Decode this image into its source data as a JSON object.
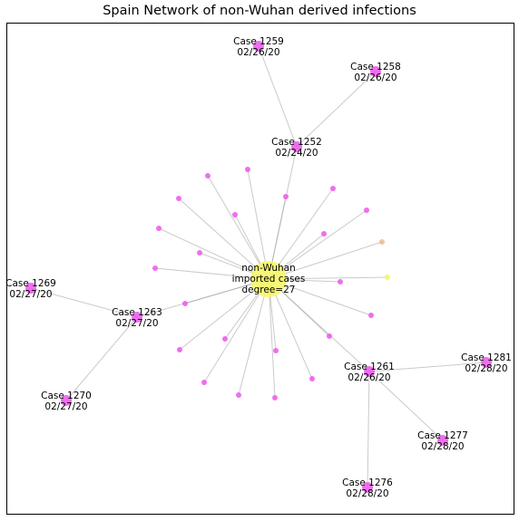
{
  "title": "Spain Network of non-Wuhan derived infections",
  "colors": {
    "hub": "#f7f76a",
    "case": "#ee55ee",
    "orange_leaf": "#f2b98a",
    "yellow_leaf": "#f5f55a",
    "edge": "#9e9e9e"
  },
  "hub": {
    "lines": [
      "non-Wuhan",
      "imported cases",
      "degree=27"
    ]
  },
  "cases": [
    {
      "id": "1259",
      "lines": [
        "Case 1259",
        "02/26/20"
      ]
    },
    {
      "id": "1258",
      "lines": [
        "Case 1258",
        "02/26/20"
      ]
    },
    {
      "id": "1252",
      "lines": [
        "Case 1252",
        "02/24/20"
      ]
    },
    {
      "id": "1269",
      "lines": [
        "Case 1269",
        "02/27/20"
      ]
    },
    {
      "id": "1263",
      "lines": [
        "Case 1263",
        "02/27/20"
      ]
    },
    {
      "id": "1261",
      "lines": [
        "Case 1261",
        "02/26/20"
      ]
    },
    {
      "id": "1281",
      "lines": [
        "Case 1281",
        "02/28/20"
      ]
    },
    {
      "id": "1270",
      "lines": [
        "Case 1270",
        "02/27/20"
      ]
    },
    {
      "id": "1277",
      "lines": [
        "Case 1277",
        "02/28/20"
      ]
    },
    {
      "id": "1276",
      "lines": [
        "Case 1276",
        "02/28/20"
      ]
    }
  ],
  "edges": [
    [
      "hub",
      "1252"
    ],
    [
      "hub",
      "1263"
    ],
    [
      "hub",
      "1261"
    ],
    [
      "1252",
      "1259"
    ],
    [
      "1252",
      "1258"
    ],
    [
      "1263",
      "1269"
    ],
    [
      "1263",
      "1270"
    ],
    [
      "1261",
      "1281"
    ],
    [
      "1261",
      "1277"
    ],
    [
      "1261",
      "1276"
    ]
  ],
  "unlabeled_leaf_count": 24
}
